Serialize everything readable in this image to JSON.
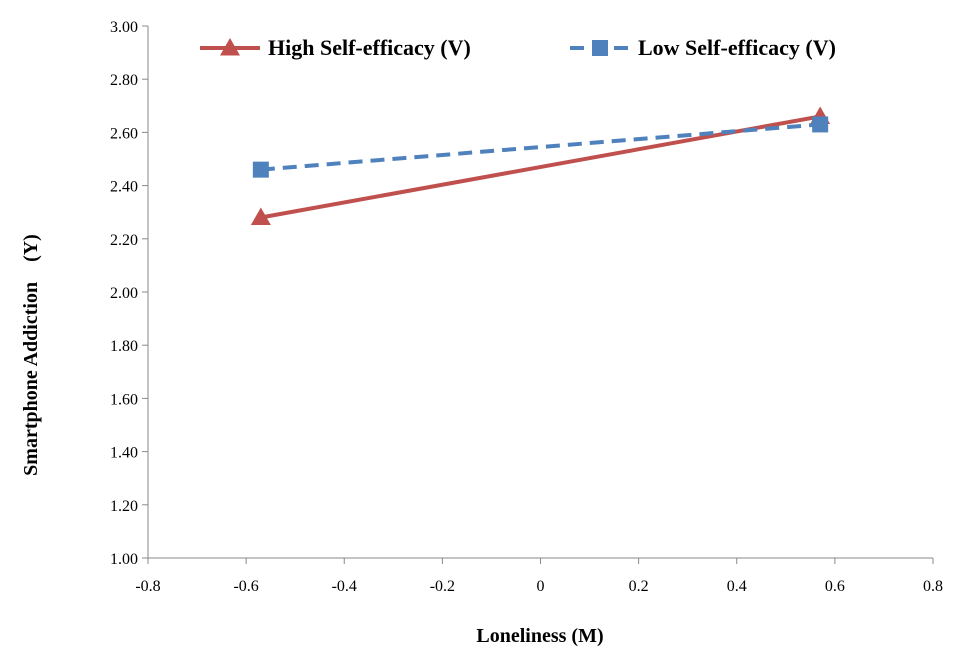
{
  "chart_data": {
    "type": "line",
    "xlabel": "Loneliness (M)",
    "ylabel": "Smartphone Addiction",
    "ylabel_suffix": "(Y)",
    "xlim": [
      -0.8,
      0.8
    ],
    "ylim": [
      1.0,
      3.0
    ],
    "x_ticks": [
      "-0.8",
      "-0.6",
      "-0.4",
      "-0.2",
      "0",
      "0.2",
      "0.4",
      "0.6",
      "0.8"
    ],
    "y_ticks": [
      "1.00",
      "1.20",
      "1.40",
      "1.60",
      "1.80",
      "2.00",
      "2.20",
      "2.40",
      "2.60",
      "2.80",
      "3.00"
    ],
    "grid": false,
    "legend_position": "top",
    "series": [
      {
        "name": "High Self-efficacy (V)",
        "color": "#c0504d",
        "line_style": "solid",
        "marker": "triangle",
        "x": [
          -0.57,
          0.57
        ],
        "y": [
          2.28,
          2.66
        ]
      },
      {
        "name": "Low Self-efficacy (V)",
        "color": "#4f81bd",
        "line_style": "dashed",
        "marker": "square",
        "x": [
          -0.57,
          0.57
        ],
        "y": [
          2.46,
          2.63
        ]
      }
    ]
  }
}
